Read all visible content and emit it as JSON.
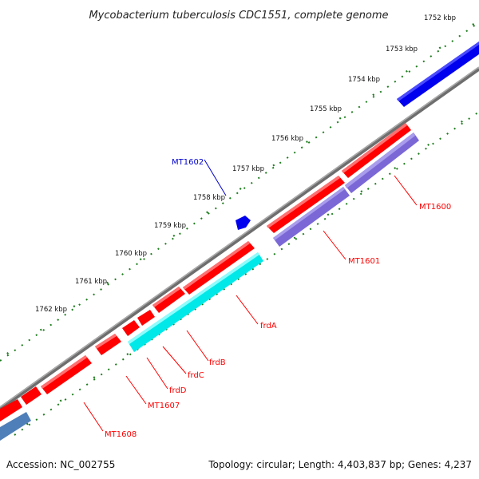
{
  "title": "Mycobacterium tuberculosis CDC1551, complete genome",
  "footer": {
    "accession": "Accession: NC_002755",
    "topology": "Topology: circular; Length: 4,403,837 bp; Genes: 4,237"
  },
  "scale_labels": [
    "1752 kbp",
    "1753 kbp",
    "1754 kbp",
    "1755 kbp",
    "1756 kbp",
    "1757 kbp",
    "1758 kbp",
    "1759 kbp",
    "1760 kbp",
    "1761 kbp",
    "1762 kbp"
  ],
  "gene_labels": [
    {
      "text": "MT1600",
      "color": "#ff0000"
    },
    {
      "text": "MT1601",
      "color": "#ff0000"
    },
    {
      "text": "MT1602",
      "color": "#0000cc"
    },
    {
      "text": "frdA",
      "color": "#ff0000"
    },
    {
      "text": "frdB",
      "color": "#ff0000"
    },
    {
      "text": "frdC",
      "color": "#ff0000"
    },
    {
      "text": "frdD",
      "color": "#ff0000"
    },
    {
      "text": "MT1607",
      "color": "#ff0000"
    },
    {
      "text": "MT1608",
      "color": "#ff0000"
    }
  ],
  "colors": {
    "backbone": "#888888",
    "tick": "#1e7d1e",
    "forward_gene": "#ff0000",
    "reverse_gene": "#7b68d6",
    "blue_gene": "#0000ee",
    "cyan_gene": "#00e8e8",
    "steelblue_gene": "#4f7fb8",
    "callout_red": "#ff0000",
    "callout_blue": "#0000cc"
  }
}
